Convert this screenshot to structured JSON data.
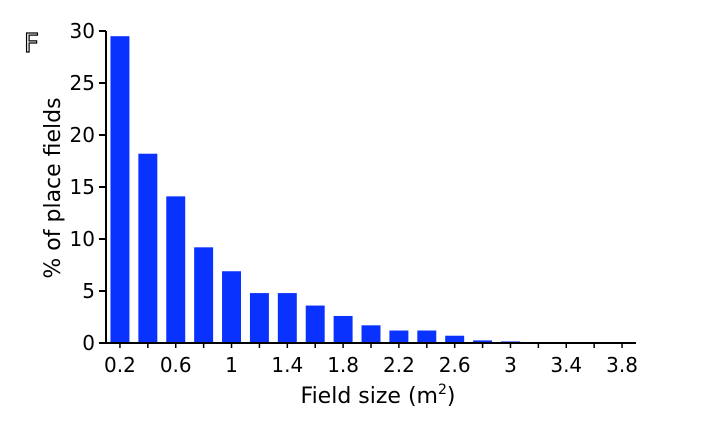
{
  "panel_label": "F",
  "chart_data": {
    "type": "bar",
    "bar_color": "#0a32ff",
    "x": [
      0.2,
      0.4,
      0.6,
      0.8,
      1.0,
      1.2,
      1.4,
      1.6,
      1.8,
      2.0,
      2.2,
      2.4,
      2.6,
      2.8,
      3.0,
      3.2,
      3.4,
      3.6,
      3.8
    ],
    "values": [
      29.5,
      18.2,
      14.1,
      9.2,
      6.9,
      4.8,
      4.8,
      3.6,
      2.6,
      1.7,
      1.2,
      1.2,
      0.7,
      0.25,
      0.15,
      0,
      0,
      0,
      0
    ],
    "x_ticks": [
      0.2,
      0.6,
      1,
      1.4,
      1.8,
      2.2,
      2.6,
      3,
      3.4,
      3.8
    ],
    "x_tick_labels": [
      "0.2",
      "0.6",
      "1",
      "1.4",
      "1.8",
      "2.2",
      "2.6",
      "3",
      "3.4",
      "3.8"
    ],
    "y_ticks": [
      0,
      5,
      10,
      15,
      20,
      25,
      30
    ],
    "y_tick_labels": [
      "0",
      "5",
      "10",
      "15",
      "20",
      "25",
      "30"
    ],
    "xlabel_main": "Field size (m",
    "xlabel_sup": "2",
    "xlabel_end": ")",
    "ylabel": "% of place fields",
    "xlim": [
      0.1,
      3.9
    ],
    "ylim": [
      0,
      30
    ],
    "grid": false,
    "legend": "none"
  }
}
